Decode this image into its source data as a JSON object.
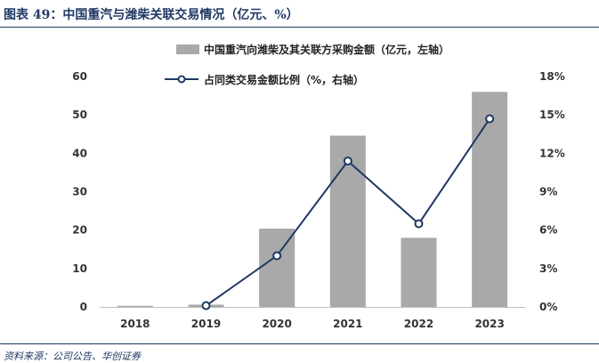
{
  "figure": {
    "title": "图表 49：中国重汽与潍柴关联交易情况（亿元、%）",
    "source": "资料来源：公司公告、华创证券"
  },
  "colors": {
    "bar": "#a9a9a9",
    "line": "#1f3864",
    "rule": "#1f3864"
  },
  "chart_data": {
    "type": "bar",
    "categories": [
      "2018",
      "2019",
      "2020",
      "2021",
      "2022",
      "2023"
    ],
    "series": [
      {
        "name": "中国重汽向潍柴及其关联方采购金额（亿元，左轴）",
        "type": "bar",
        "axis": "left",
        "values": [
          0.3,
          0.6,
          20.4,
          44.6,
          18.0,
          56.0
        ]
      },
      {
        "name": "占同类交易金额比例（%，右轴）",
        "type": "line",
        "axis": "right",
        "values": [
          null,
          0.1,
          4.0,
          11.4,
          6.5,
          14.7
        ]
      }
    ],
    "ylim": [
      0,
      60
    ],
    "yticks": [
      "0",
      "10",
      "20",
      "30",
      "40",
      "50",
      "60"
    ],
    "y2lim": [
      0,
      18
    ],
    "y2ticks": [
      "0%",
      "3%",
      "6%",
      "9%",
      "12%",
      "15%",
      "18%"
    ],
    "legend": "top-center",
    "grid": false
  }
}
